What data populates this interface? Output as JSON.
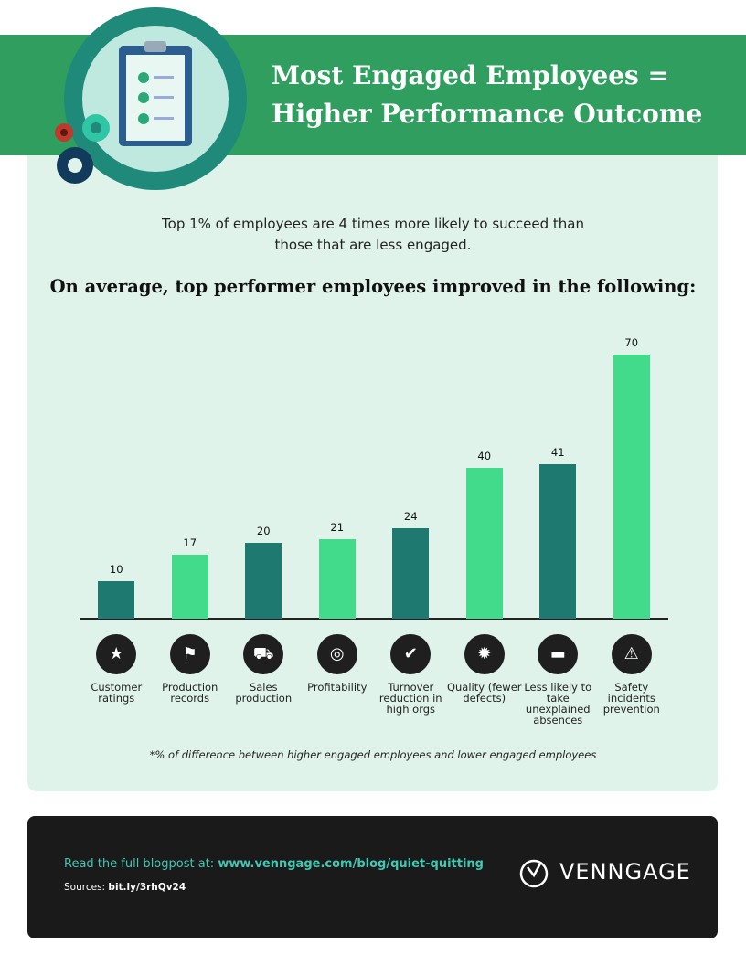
{
  "header": {
    "title": "Most Engaged Employees = Higher Performance Outcome"
  },
  "subtitle": "Top 1% of employees are 4 times more likely to succeed than those that are less engaged.",
  "chart_data": {
    "type": "bar",
    "title": "On average, top performer employees improved in the following:",
    "categories": [
      "Customer ratings",
      "Production records",
      "Sales production",
      "Profitability",
      "Turnover reduction in high orgs",
      "Quality (fewer defects)",
      "Less likely to take unexplained absences",
      "Safety incidents prevention"
    ],
    "values": [
      10,
      17,
      20,
      21,
      24,
      40,
      41,
      70
    ],
    "colors": [
      "#1e7a70",
      "#42db8c",
      "#1e7a70",
      "#42db8c",
      "#1e7a70",
      "#42db8c",
      "#1e7a70",
      "#42db8c"
    ],
    "note": "*% of difference between higher engaged employees and lower engaged employees"
  },
  "footer": {
    "read_label": "Read the full blogpost at:",
    "link": "www.venngage.com/blog/quiet-quitting",
    "sources_label": "Sources:",
    "sources_link": "bit.ly/3rhQv24",
    "logo": "VENNGAGE"
  }
}
